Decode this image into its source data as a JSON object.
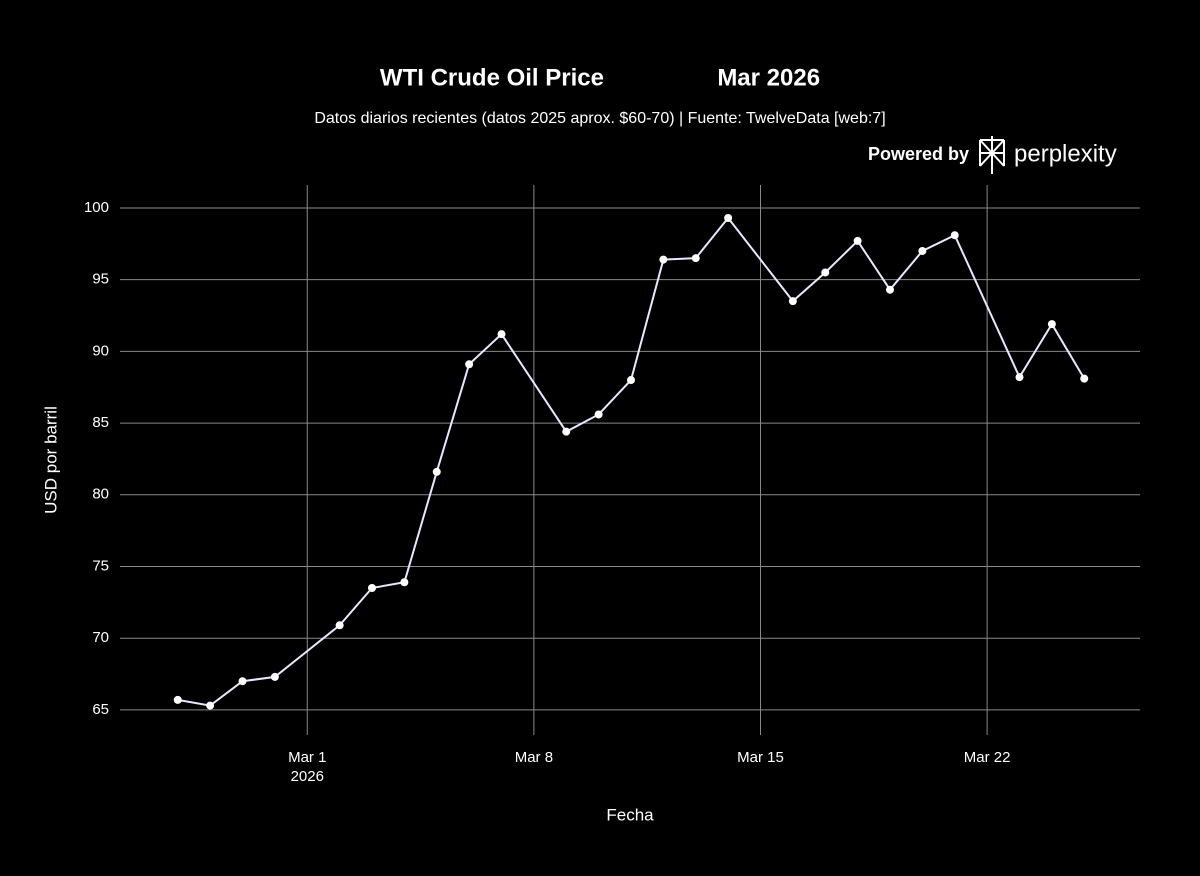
{
  "chart_data": {
    "type": "line",
    "title": "WTI Crude Oil Price                 Mar 2026",
    "subtitle": "Datos diarios recientes (datos 2025 aprox. $60-70) | Fuente: TwelveData [web:7]",
    "watermark": "Powered by",
    "watermark_brand": "perplexity",
    "x_label": "Fecha",
    "y_label": "USD por barril",
    "x": [
      "2026-02-25",
      "2026-02-26",
      "2026-02-27",
      "2026-02-28",
      "2026-03-02",
      "2026-03-03",
      "2026-03-04",
      "2026-03-05",
      "2026-03-06",
      "2026-03-07",
      "2026-03-09",
      "2026-03-10",
      "2026-03-11",
      "2026-03-12",
      "2026-03-13",
      "2026-03-14",
      "2026-03-16",
      "2026-03-17",
      "2026-03-18",
      "2026-03-19",
      "2026-03-20",
      "2026-03-21",
      "2026-03-23",
      "2026-03-24",
      "2026-03-25"
    ],
    "series": [
      {
        "color": "#e6e8ff",
        "values": [
          65.7,
          65.3,
          67.0,
          67.3,
          70.9,
          73.5,
          73.9,
          81.6,
          89.1,
          91.2,
          84.4,
          85.6,
          88.0,
          96.4,
          96.5,
          99.3,
          93.5,
          95.5,
          97.7,
          94.3,
          97.0,
          98.1,
          88.2,
          91.9,
          88.1
        ]
      }
    ],
    "xlim": [
      "2026-02-23",
      "2026-03-27"
    ],
    "xticks": [
      {
        "value": "2026-03-01",
        "label": "Mar 1\n2026"
      },
      {
        "value": "2026-03-08",
        "label": "Mar 8"
      },
      {
        "value": "2026-03-15",
        "label": "Mar 15"
      },
      {
        "value": "2026-03-22",
        "label": "Mar 22"
      }
    ],
    "ylim": [
      63.25,
      101.6
    ],
    "yticks": [
      65,
      70,
      75,
      80,
      85,
      90,
      95,
      100
    ],
    "grid": true
  }
}
